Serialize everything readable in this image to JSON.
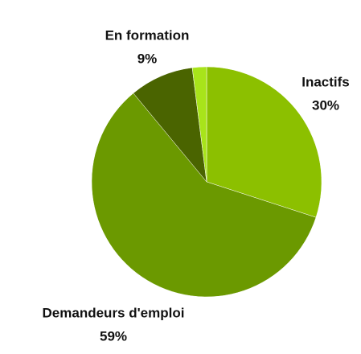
{
  "chart_data": {
    "type": "pie",
    "categories": [
      "Inactifs",
      "Demandeurs d'emploi",
      "En formation",
      null
    ],
    "values": [
      30,
      59,
      9,
      2
    ],
    "value_labels": [
      "30%",
      "59%",
      "9%",
      null
    ],
    "colors": [
      "#8cc000",
      "#6b9900",
      "#4a6400",
      "#a8e41a"
    ]
  }
}
